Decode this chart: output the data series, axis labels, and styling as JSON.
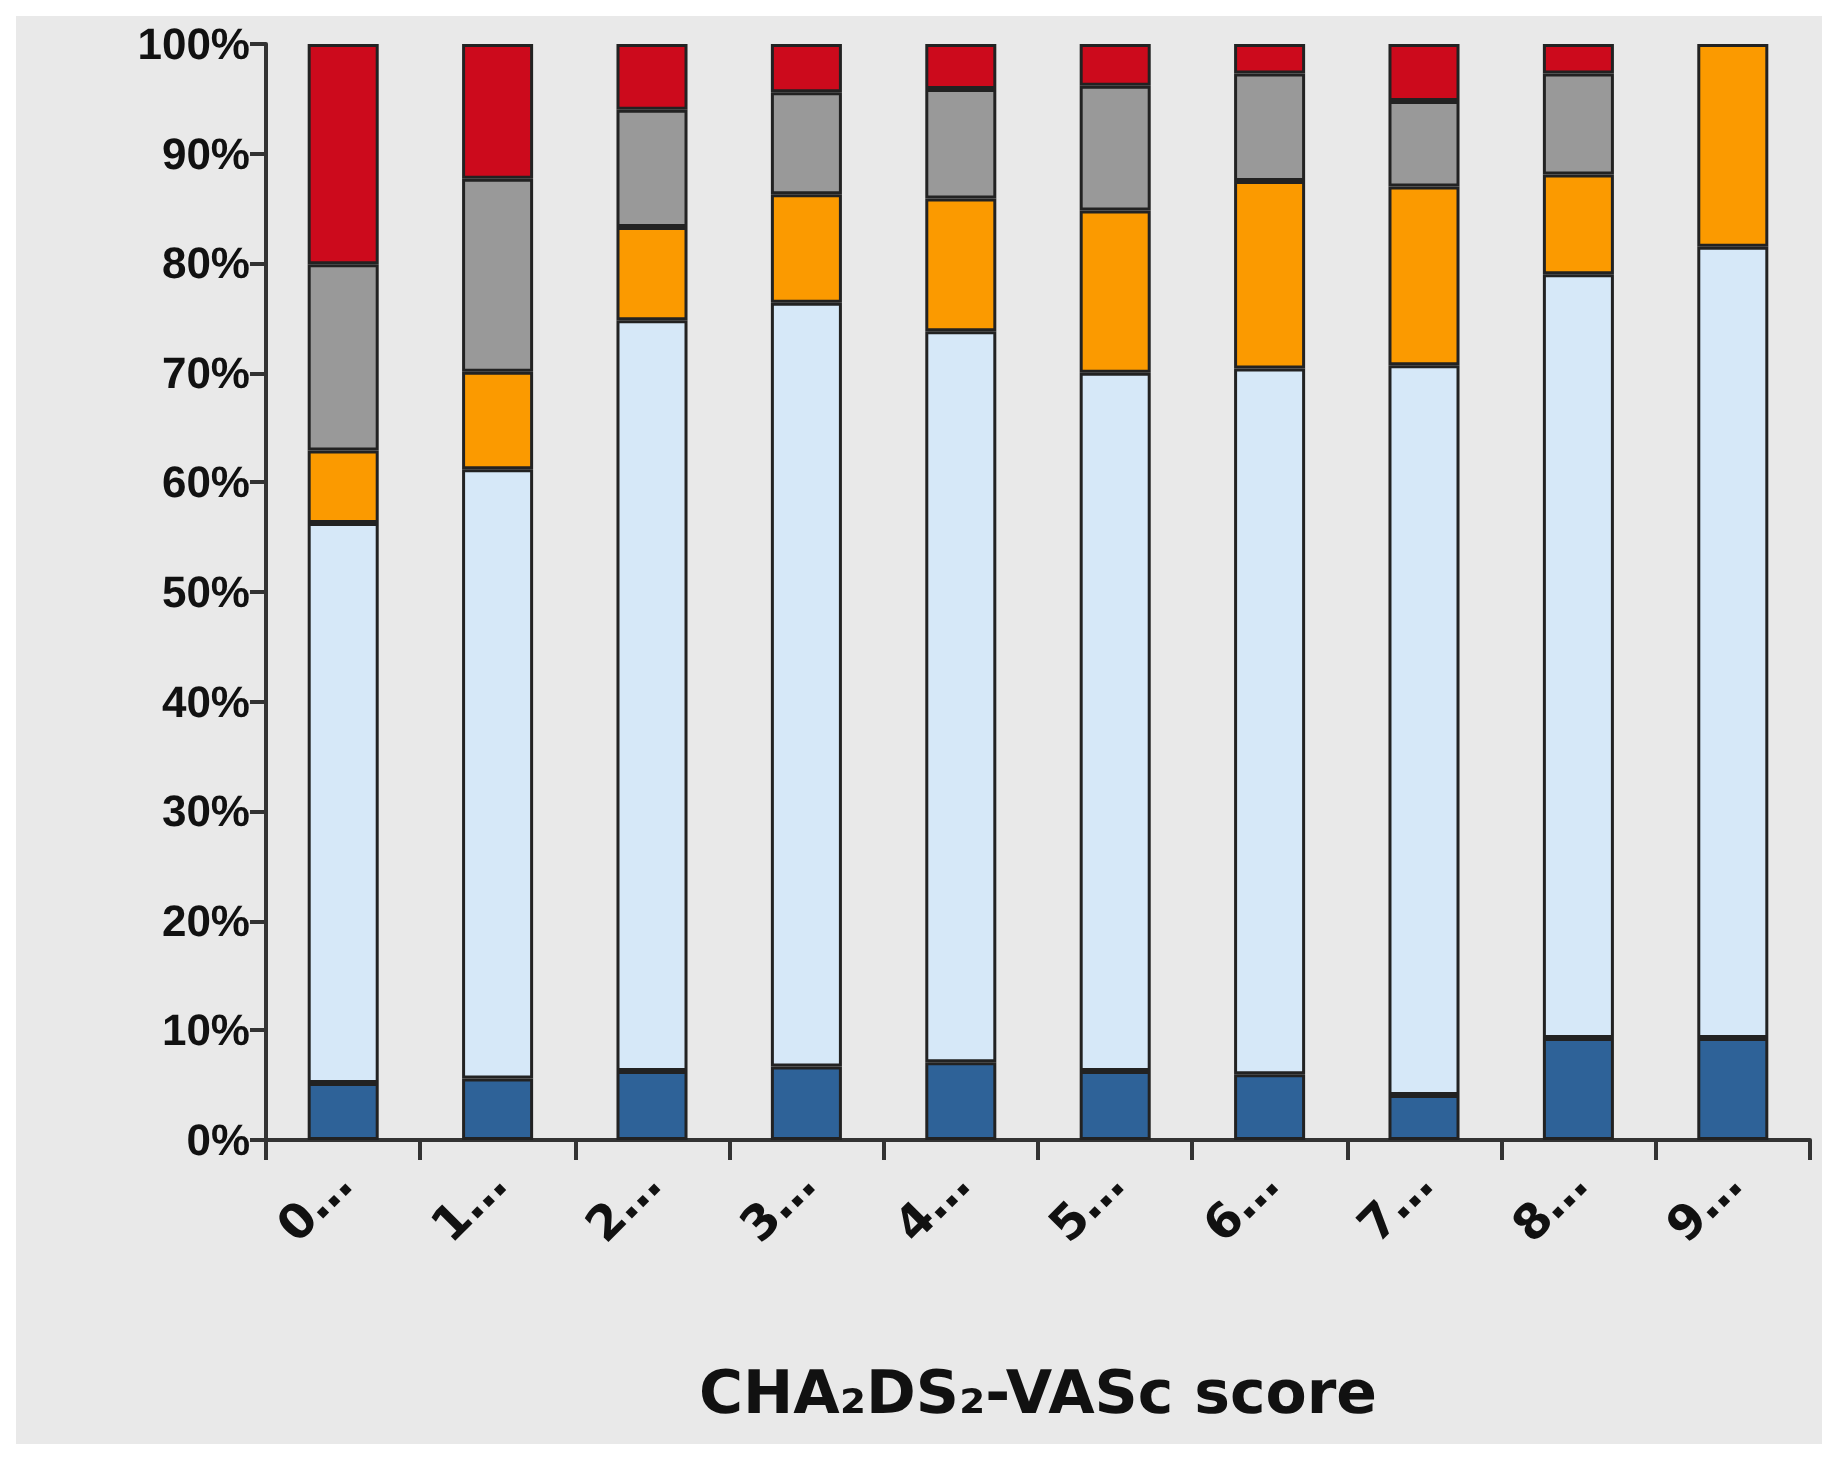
{
  "chart_data": {
    "type": "bar",
    "stacked": true,
    "xlabel": "CHA₂DS₂-VASc score",
    "categories": [
      "0…",
      "1…",
      "2…",
      "3…",
      "4…",
      "5…",
      "6…",
      "7…",
      "8…",
      "9…"
    ],
    "series": [
      {
        "color": "#2e6298",
        "values": [
          5.2,
          5.6,
          6.3,
          6.7,
          7.1,
          6.3,
          6.0,
          4.1,
          9.3,
          9.3
        ]
      },
      {
        "color": "#d6e8f8",
        "values": [
          51.1,
          55.6,
          68.5,
          69.7,
          66.7,
          63.7,
          64.4,
          66.6,
          69.7,
          72.2
        ]
      },
      {
        "color": "#fb9a00",
        "values": [
          6.6,
          8.9,
          8.5,
          9.9,
          12.1,
          14.8,
          17.1,
          16.3,
          9.1,
          18.5
        ]
      },
      {
        "color": "#999999",
        "values": [
          17.0,
          17.6,
          10.7,
          9.3,
          10.0,
          11.4,
          9.8,
          7.8,
          9.2,
          null
        ]
      },
      {
        "color": "#cc0a1c",
        "values": [
          20.1,
          12.3,
          6.0,
          4.4,
          4.1,
          3.8,
          2.7,
          5.2,
          2.7,
          null
        ]
      }
    ],
    "ylim": [
      0,
      100
    ],
    "yticks": [
      {
        "value": 0,
        "label": "0%"
      },
      {
        "value": 10,
        "label": "10%"
      },
      {
        "value": 20,
        "label": "20%"
      },
      {
        "value": 30,
        "label": "30%"
      },
      {
        "value": 40,
        "label": "40%"
      },
      {
        "value": 50,
        "label": "50%"
      },
      {
        "value": 60,
        "label": "60%"
      },
      {
        "value": 70,
        "label": "70%"
      },
      {
        "value": 80,
        "label": "80%"
      },
      {
        "value": 90,
        "label": "90%"
      },
      {
        "value": 100,
        "label": "100%"
      }
    ],
    "grid": false
  }
}
